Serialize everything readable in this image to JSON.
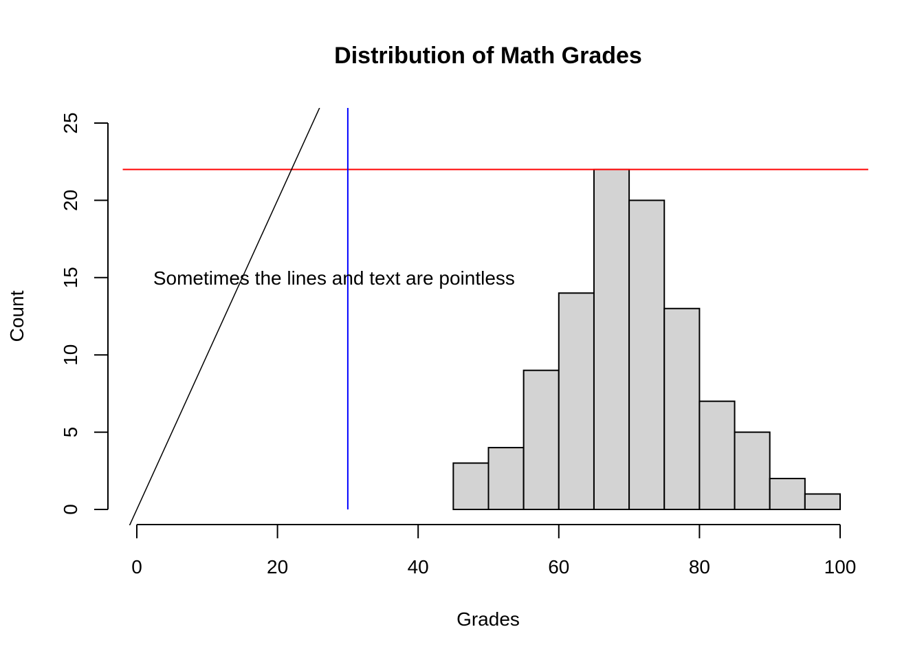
{
  "chart_data": {
    "type": "bar",
    "title": "Distribution of Math Grades",
    "xlabel": "Grades",
    "ylabel": "Count",
    "xlim": [
      -2,
      104
    ],
    "ylim": [
      0,
      26
    ],
    "x_ticks": [
      0,
      20,
      40,
      60,
      80,
      100
    ],
    "y_ticks": [
      0,
      5,
      10,
      15,
      20,
      25
    ],
    "bins": [
      {
        "x0": 45,
        "x1": 50,
        "count": 3
      },
      {
        "x0": 50,
        "x1": 55,
        "count": 4
      },
      {
        "x0": 55,
        "x1": 60,
        "count": 9
      },
      {
        "x0": 60,
        "x1": 65,
        "count": 14
      },
      {
        "x0": 65,
        "x1": 70,
        "count": 22
      },
      {
        "x0": 70,
        "x1": 75,
        "count": 20
      },
      {
        "x0": 75,
        "x1": 80,
        "count": 13
      },
      {
        "x0": 80,
        "x1": 85,
        "count": 7
      },
      {
        "x0": 85,
        "x1": 90,
        "count": 5
      },
      {
        "x0": 90,
        "x1": 95,
        "count": 2
      },
      {
        "x0": 95,
        "x1": 100,
        "count": 1
      }
    ],
    "bar_fill": "#d3d3d3",
    "bar_stroke": "#000000",
    "reference_lines": [
      {
        "kind": "horizontal",
        "y": 22,
        "color": "#ff0000"
      },
      {
        "kind": "vertical",
        "x": 30,
        "color": "#0000ff"
      },
      {
        "kind": "abline",
        "intercept": 0,
        "slope": 1,
        "color": "#000000"
      }
    ],
    "annotation": {
      "text": "Sometimes the lines and text are pointless",
      "x": 30,
      "y": 15
    }
  }
}
